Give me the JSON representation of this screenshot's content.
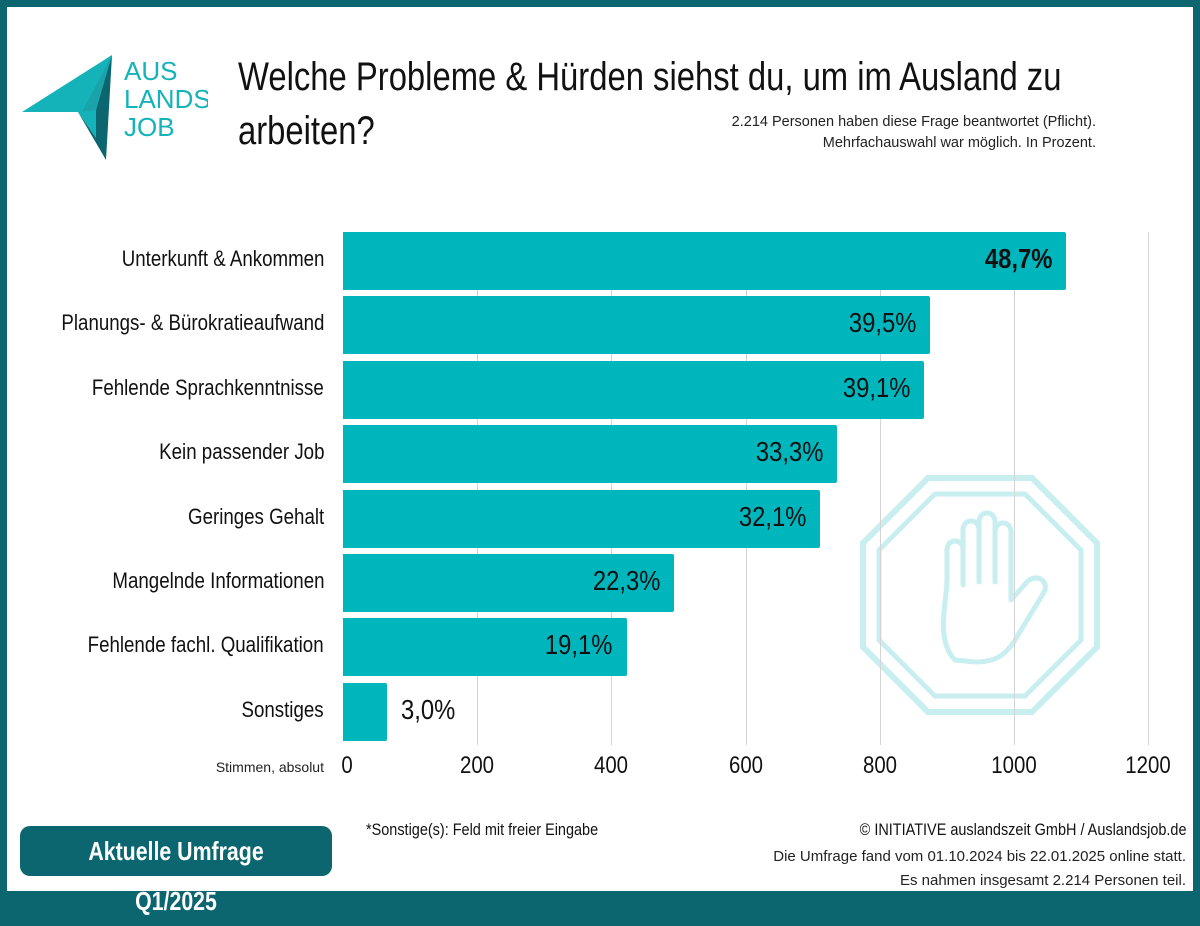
{
  "logo": {
    "text": [
      "AUS",
      "LANDS",
      "JOB"
    ]
  },
  "header": {
    "title": "Welche Probleme & Hürden siehst du, um im Ausland zu arbeiten?",
    "subtitle_1": "2.214 Personen haben diese Frage beantwortet (Pflicht).",
    "subtitle_2": "Mehrfachauswahl war möglich. In Prozent."
  },
  "chart_data": {
    "type": "bar",
    "orientation": "horizontal",
    "title": "Welche Probleme & Hürden siehst du, um im Ausland zu arbeiten?",
    "xlabel": "Stimmen, absolut",
    "xlim": [
      0,
      1200
    ],
    "xticks": [
      "0",
      "200",
      "400",
      "600",
      "800",
      "1000",
      "1200"
    ],
    "grid": true,
    "categories": [
      "Unterkunft & Ankommen",
      "Planungs- & Bürokratieaufwand",
      "Fehlende Sprachkenntnisse",
      "Kein passender Job",
      "Geringes Gehalt",
      "Mangelnde Informationen",
      "Fehlende fachl. Qualifikation",
      "Sonstiges"
    ],
    "values": [
      1078,
      875,
      866,
      737,
      711,
      494,
      423,
      66
    ],
    "labels": [
      "48,7%",
      "39,5%",
      "39,1%",
      "33,3%",
      "32,1%",
      "22,3%",
      "19,1%",
      "3,0%"
    ],
    "colors": {
      "bar": "#00b6bd",
      "accent": "#0b6670"
    }
  },
  "footer": {
    "badge": "Aktuelle Umfrage Q1/2025",
    "note": "*Sonstige(s): Feld mit freier Eingabe",
    "copyright": "© INITIATIVE auslandszeit GmbH / Auslandsjob.de",
    "line_1": "Die Umfrage fand vom 01.10.2024 bis 22.01.2025 online statt.",
    "line_2": "Es nahmen insgesamt 2.214 Personen teil."
  },
  "watermark": {
    "icon": "stop-hand-icon"
  }
}
